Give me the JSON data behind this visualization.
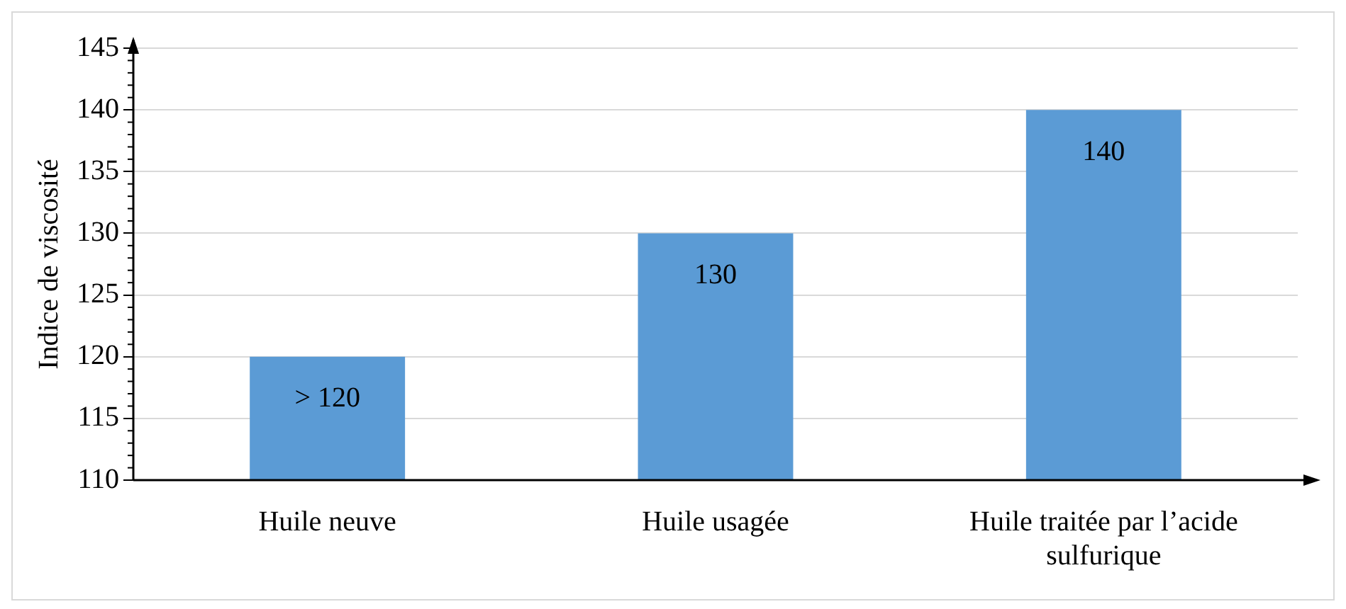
{
  "chart_data": {
    "type": "bar",
    "ylabel": "Indice de viscosité",
    "categories": [
      "Huile neuve",
      "Huile usagée",
      "Huile traitée par l’acide sulfurique"
    ],
    "values": [
      120,
      130,
      140
    ],
    "color": "#5b9bd5",
    "value_labels": [
      "> 120",
      "130",
      "140"
    ],
    "ylim": [
      110,
      145
    ],
    "yticks": [
      110,
      115,
      120,
      125,
      130,
      135,
      140,
      145
    ],
    "grid": "y",
    "legend": false
  }
}
